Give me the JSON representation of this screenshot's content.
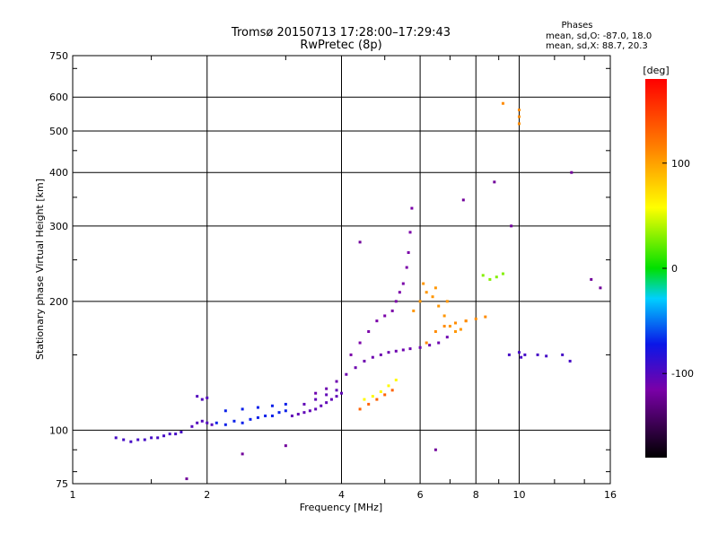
{
  "chart_data": {
    "type": "scatter",
    "title": "Tromsø 20150713 17:28:00–17:29:43",
    "subtitle": "RwPretec (8p)",
    "phase_stats": {
      "heading": "Phases",
      "line_o": "mean, sd,O: -87.0, 18.0",
      "line_x": "mean, sd,X:  88.7, 20.3"
    },
    "xlabel": "Frequency [MHz]",
    "ylabel": "Stationary phase Virtual Height [km]",
    "xscale": "log",
    "yscale": "log",
    "xlim": [
      1,
      16
    ],
    "ylim": [
      75,
      750
    ],
    "xticks": [
      1,
      2,
      4,
      6,
      8,
      10,
      16
    ],
    "xtick_labels": [
      "1",
      "2",
      "4",
      "6",
      "8",
      "10",
      "16"
    ],
    "yticks": [
      75,
      100,
      200,
      300,
      400,
      500,
      600,
      750
    ],
    "ytick_labels": [
      "75",
      "100",
      "200",
      "300",
      "400",
      "500",
      "600",
      "750"
    ],
    "grid": true,
    "colorbar": {
      "label": "[deg]",
      "range": [
        -180,
        180
      ],
      "ticks": [
        100,
        0,
        -100
      ],
      "tick_labels": [
        "100",
        "0",
        "-100"
      ]
    },
    "series": [
      {
        "x": [
          1.25,
          1.3,
          1.35,
          1.4,
          1.45,
          1.5,
          1.55,
          1.6,
          1.65,
          1.7,
          1.75
        ],
        "y": [
          96,
          95,
          94,
          95,
          95,
          96,
          96,
          97,
          98,
          98,
          99
        ],
        "phase": -95
      },
      {
        "x": [
          1.85,
          1.9,
          1.95,
          2.0,
          2.05,
          1.9,
          1.95,
          2.0
        ],
        "y": [
          102,
          104,
          105,
          104,
          103,
          120,
          118,
          119
        ],
        "phase": -100
      },
      {
        "x": [
          2.1,
          2.2,
          2.3,
          2.4,
          2.5,
          2.6,
          2.7,
          2.8,
          2.9,
          3.0,
          2.2,
          2.4,
          2.6,
          2.8,
          3.0
        ],
        "y": [
          104,
          103,
          105,
          104,
          106,
          107,
          108,
          108,
          110,
          111,
          111,
          112,
          113,
          114,
          115
        ],
        "phase": -70
      },
      {
        "x": [
          3.1,
          3.2,
          3.3,
          3.4,
          3.5,
          3.6,
          3.7,
          3.8,
          3.9,
          4.0,
          3.3,
          3.5,
          3.7,
          3.9
        ],
        "y": [
          108,
          109,
          110,
          111,
          112,
          114,
          116,
          118,
          120,
          122,
          115,
          118,
          121,
          124
        ],
        "phase": -105
      },
      {
        "x": [
          3.5,
          3.7,
          3.9,
          4.1,
          4.3,
          4.5,
          4.7,
          4.9,
          5.1,
          5.3,
          5.5,
          5.7,
          6.0,
          6.3,
          6.6,
          6.9
        ],
        "y": [
          122,
          125,
          130,
          135,
          140,
          145,
          148,
          150,
          152,
          153,
          154,
          155,
          156,
          158,
          160,
          165
        ],
        "phase": -110
      },
      {
        "x": [
          4.2,
          4.4,
          4.6,
          4.8,
          5.0,
          5.2,
          5.3,
          5.4,
          5.5,
          5.6,
          5.65,
          5.7,
          5.75
        ],
        "y": [
          150,
          160,
          170,
          180,
          185,
          190,
          200,
          210,
          220,
          240,
          260,
          290,
          330
        ],
        "phase": -115
      },
      {
        "x": [
          4.5,
          4.7,
          4.9,
          5.1,
          5.3
        ],
        "y": [
          118,
          120,
          123,
          127,
          131
        ],
        "phase": 60
      },
      {
        "x": [
          4.4,
          4.6,
          4.8,
          5.0,
          5.2
        ],
        "y": [
          112,
          115,
          118,
          121,
          124
        ],
        "phase": 130
      },
      {
        "x": [
          5.8,
          6.0,
          6.2,
          6.4,
          6.6,
          6.8,
          7.0,
          7.2,
          7.4,
          7.6,
          6.1,
          6.5,
          6.9
        ],
        "y": [
          190,
          200,
          210,
          205,
          195,
          185,
          175,
          170,
          172,
          180,
          220,
          215,
          200
        ],
        "phase": 105
      },
      {
        "x": [
          6.2,
          6.5,
          6.8,
          7.2,
          7.6,
          8.0,
          8.4
        ],
        "y": [
          160,
          170,
          175,
          178,
          180,
          182,
          184
        ],
        "phase": 110
      },
      {
        "x": [
          8.3,
          8.6,
          8.9,
          9.2
        ],
        "y": [
          230,
          225,
          228,
          232
        ],
        "phase": 30
      },
      {
        "x": [
          9.5,
          10.0,
          10.1,
          10.3,
          11.0,
          11.5,
          12.5,
          13.0
        ],
        "y": [
          150,
          152,
          148,
          150,
          150,
          149,
          150,
          145
        ],
        "phase": -95
      },
      {
        "x": [
          9.2,
          10.0,
          10.0,
          10.0
        ],
        "y": [
          580,
          560,
          540,
          520
        ],
        "phase": 110
      },
      {
        "x": [
          1.8,
          2.4,
          3.0,
          4.4,
          6.5,
          7.5,
          8.8,
          9.6,
          13.1,
          14.5,
          15.2
        ],
        "y": [
          77,
          88,
          92,
          275,
          90,
          345,
          380,
          300,
          400,
          225,
          215
        ],
        "phase": -120
      }
    ]
  }
}
